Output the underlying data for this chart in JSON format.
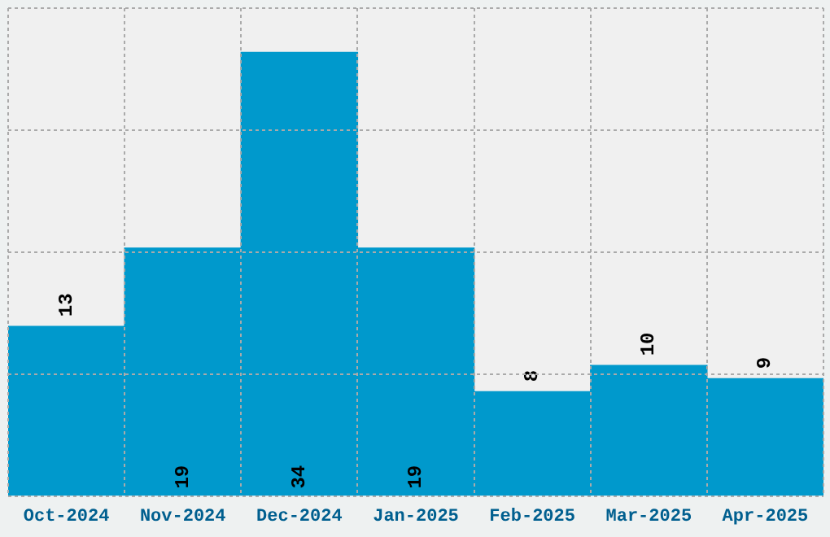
{
  "chart_data": {
    "type": "bar",
    "categories": [
      "Oct-2024",
      "Nov-2024",
      "Dec-2024",
      "Jan-2025",
      "Feb-2025",
      "Mar-2025",
      "Apr-2025"
    ],
    "values": [
      13,
      19,
      34,
      19,
      8,
      10,
      9
    ],
    "color": "#0099cc",
    "ylim": [
      0,
      37.4
    ],
    "yticks": [
      {
        "value": 0,
        "label": null
      },
      {
        "value": 9.35,
        "label": null
      },
      {
        "value": 18.7,
        "label": null
      },
      {
        "value": 28.05,
        "label": null
      },
      {
        "value": 37.4,
        "label": null
      }
    ],
    "tick_labels": "x",
    "grid": true,
    "data_labels": true
  }
}
